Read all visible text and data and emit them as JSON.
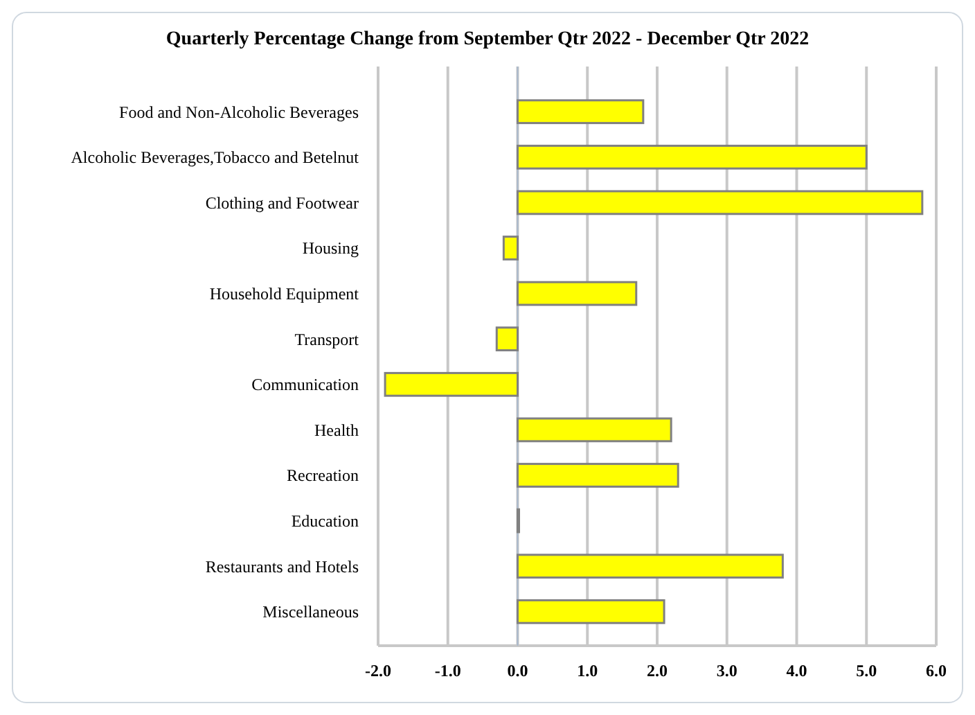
{
  "chart_data": {
    "type": "bar",
    "orientation": "horizontal",
    "title": "Quarterly Percentage Change from September Qtr 2022 - December Qtr 2022",
    "categories": [
      "Food and Non-Alcoholic Beverages",
      "Alcoholic  Beverages,Tobacco and Betelnut",
      "Clothing and Footwear",
      "Housing",
      "Household Equipment",
      "Transport",
      "Communication",
      "Health",
      "Recreation",
      "Education",
      "Restaurants and Hotels",
      "Miscellaneous"
    ],
    "values": [
      1.8,
      5.0,
      5.8,
      -0.2,
      1.7,
      -0.3,
      -1.9,
      2.2,
      2.3,
      0.0,
      3.8,
      2.1
    ],
    "color": "#ffff00",
    "xlim": [
      -2.0,
      6.0
    ],
    "xticks": [
      {
        "value": -2,
        "label": "-2.0"
      },
      {
        "value": -1,
        "label": "-1.0"
      },
      {
        "value": 0,
        "label": "0.0"
      },
      {
        "value": 1,
        "label": "1.0"
      },
      {
        "value": 2,
        "label": "2.0"
      },
      {
        "value": 3,
        "label": "3.0"
      },
      {
        "value": 4,
        "label": "4.0"
      },
      {
        "value": 5,
        "label": "5.0"
      },
      {
        "value": 6,
        "label": "6.0"
      }
    ],
    "grid": "x"
  }
}
